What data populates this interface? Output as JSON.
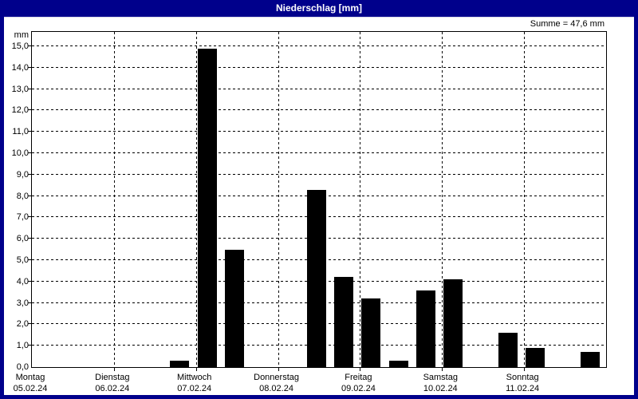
{
  "window": {
    "title": "Niederschlag [mm]"
  },
  "summary_label": "Summe = 47,6 mm",
  "chart_data": {
    "type": "bar",
    "title": "Niederschlag [mm]",
    "ylabel": "mm",
    "unit_label": "mm",
    "sum_mm": 47.6,
    "sum_label": "Summe = 47,6 mm",
    "ylim": [
      0,
      15.7
    ],
    "y_tick_step": 1.0,
    "y_ticks": [
      0,
      1,
      2,
      3,
      4,
      5,
      6,
      7,
      8,
      9,
      10,
      11,
      12,
      13,
      14,
      15
    ],
    "y_tick_labels": [
      "0,0",
      "1,0",
      "2,0",
      "3,0",
      "4,0",
      "5,0",
      "6,0",
      "7,0",
      "8,0",
      "9,0",
      "10,0",
      "11,0",
      "12,0",
      "13,0",
      "14,0",
      "15,0"
    ],
    "grid": true,
    "legend": "none",
    "days": [
      {
        "name": "Montag",
        "date": "05.02.24"
      },
      {
        "name": "Dienstag",
        "date": "06.02.24"
      },
      {
        "name": "Mittwoch",
        "date": "07.02.24"
      },
      {
        "name": "Donnerstag",
        "date": "08.02.24"
      },
      {
        "name": "Freitag",
        "date": "09.02.24"
      },
      {
        "name": "Samstag",
        "date": "10.02.24"
      },
      {
        "name": "Sonntag",
        "date": "11.02.24"
      }
    ],
    "slots_per_day": 3,
    "bars": [
      {
        "day_index": 1,
        "day": "Dienstag",
        "slot": 2,
        "value_mm": 0.3
      },
      {
        "day_index": 2,
        "day": "Mittwoch",
        "slot": 0,
        "value_mm": 14.9
      },
      {
        "day_index": 2,
        "day": "Mittwoch",
        "slot": 1,
        "value_mm": 5.5
      },
      {
        "day_index": 3,
        "day": "Donnerstag",
        "slot": 1,
        "value_mm": 8.3
      },
      {
        "day_index": 3,
        "day": "Donnerstag",
        "slot": 2,
        "value_mm": 4.2
      },
      {
        "day_index": 4,
        "day": "Freitag",
        "slot": 0,
        "value_mm": 3.2
      },
      {
        "day_index": 4,
        "day": "Freitag",
        "slot": 1,
        "value_mm": 0.3
      },
      {
        "day_index": 4,
        "day": "Freitag",
        "slot": 2,
        "value_mm": 3.6
      },
      {
        "day_index": 5,
        "day": "Samstag",
        "slot": 0,
        "value_mm": 4.1
      },
      {
        "day_index": 5,
        "day": "Samstag",
        "slot": 2,
        "value_mm": 1.6
      },
      {
        "day_index": 6,
        "day": "Sonntag",
        "slot": 0,
        "value_mm": 0.9
      },
      {
        "day_index": 6,
        "day": "Sonntag",
        "slot": 2,
        "value_mm": 0.7
      }
    ]
  },
  "colors": {
    "frame": "#00008B",
    "title_text": "#FFFFFF",
    "panel_bg": "#FFFFFF",
    "plot_bg": "#FFFFFF",
    "bar": "#000000",
    "grid": "#000000",
    "text": "#000000"
  }
}
